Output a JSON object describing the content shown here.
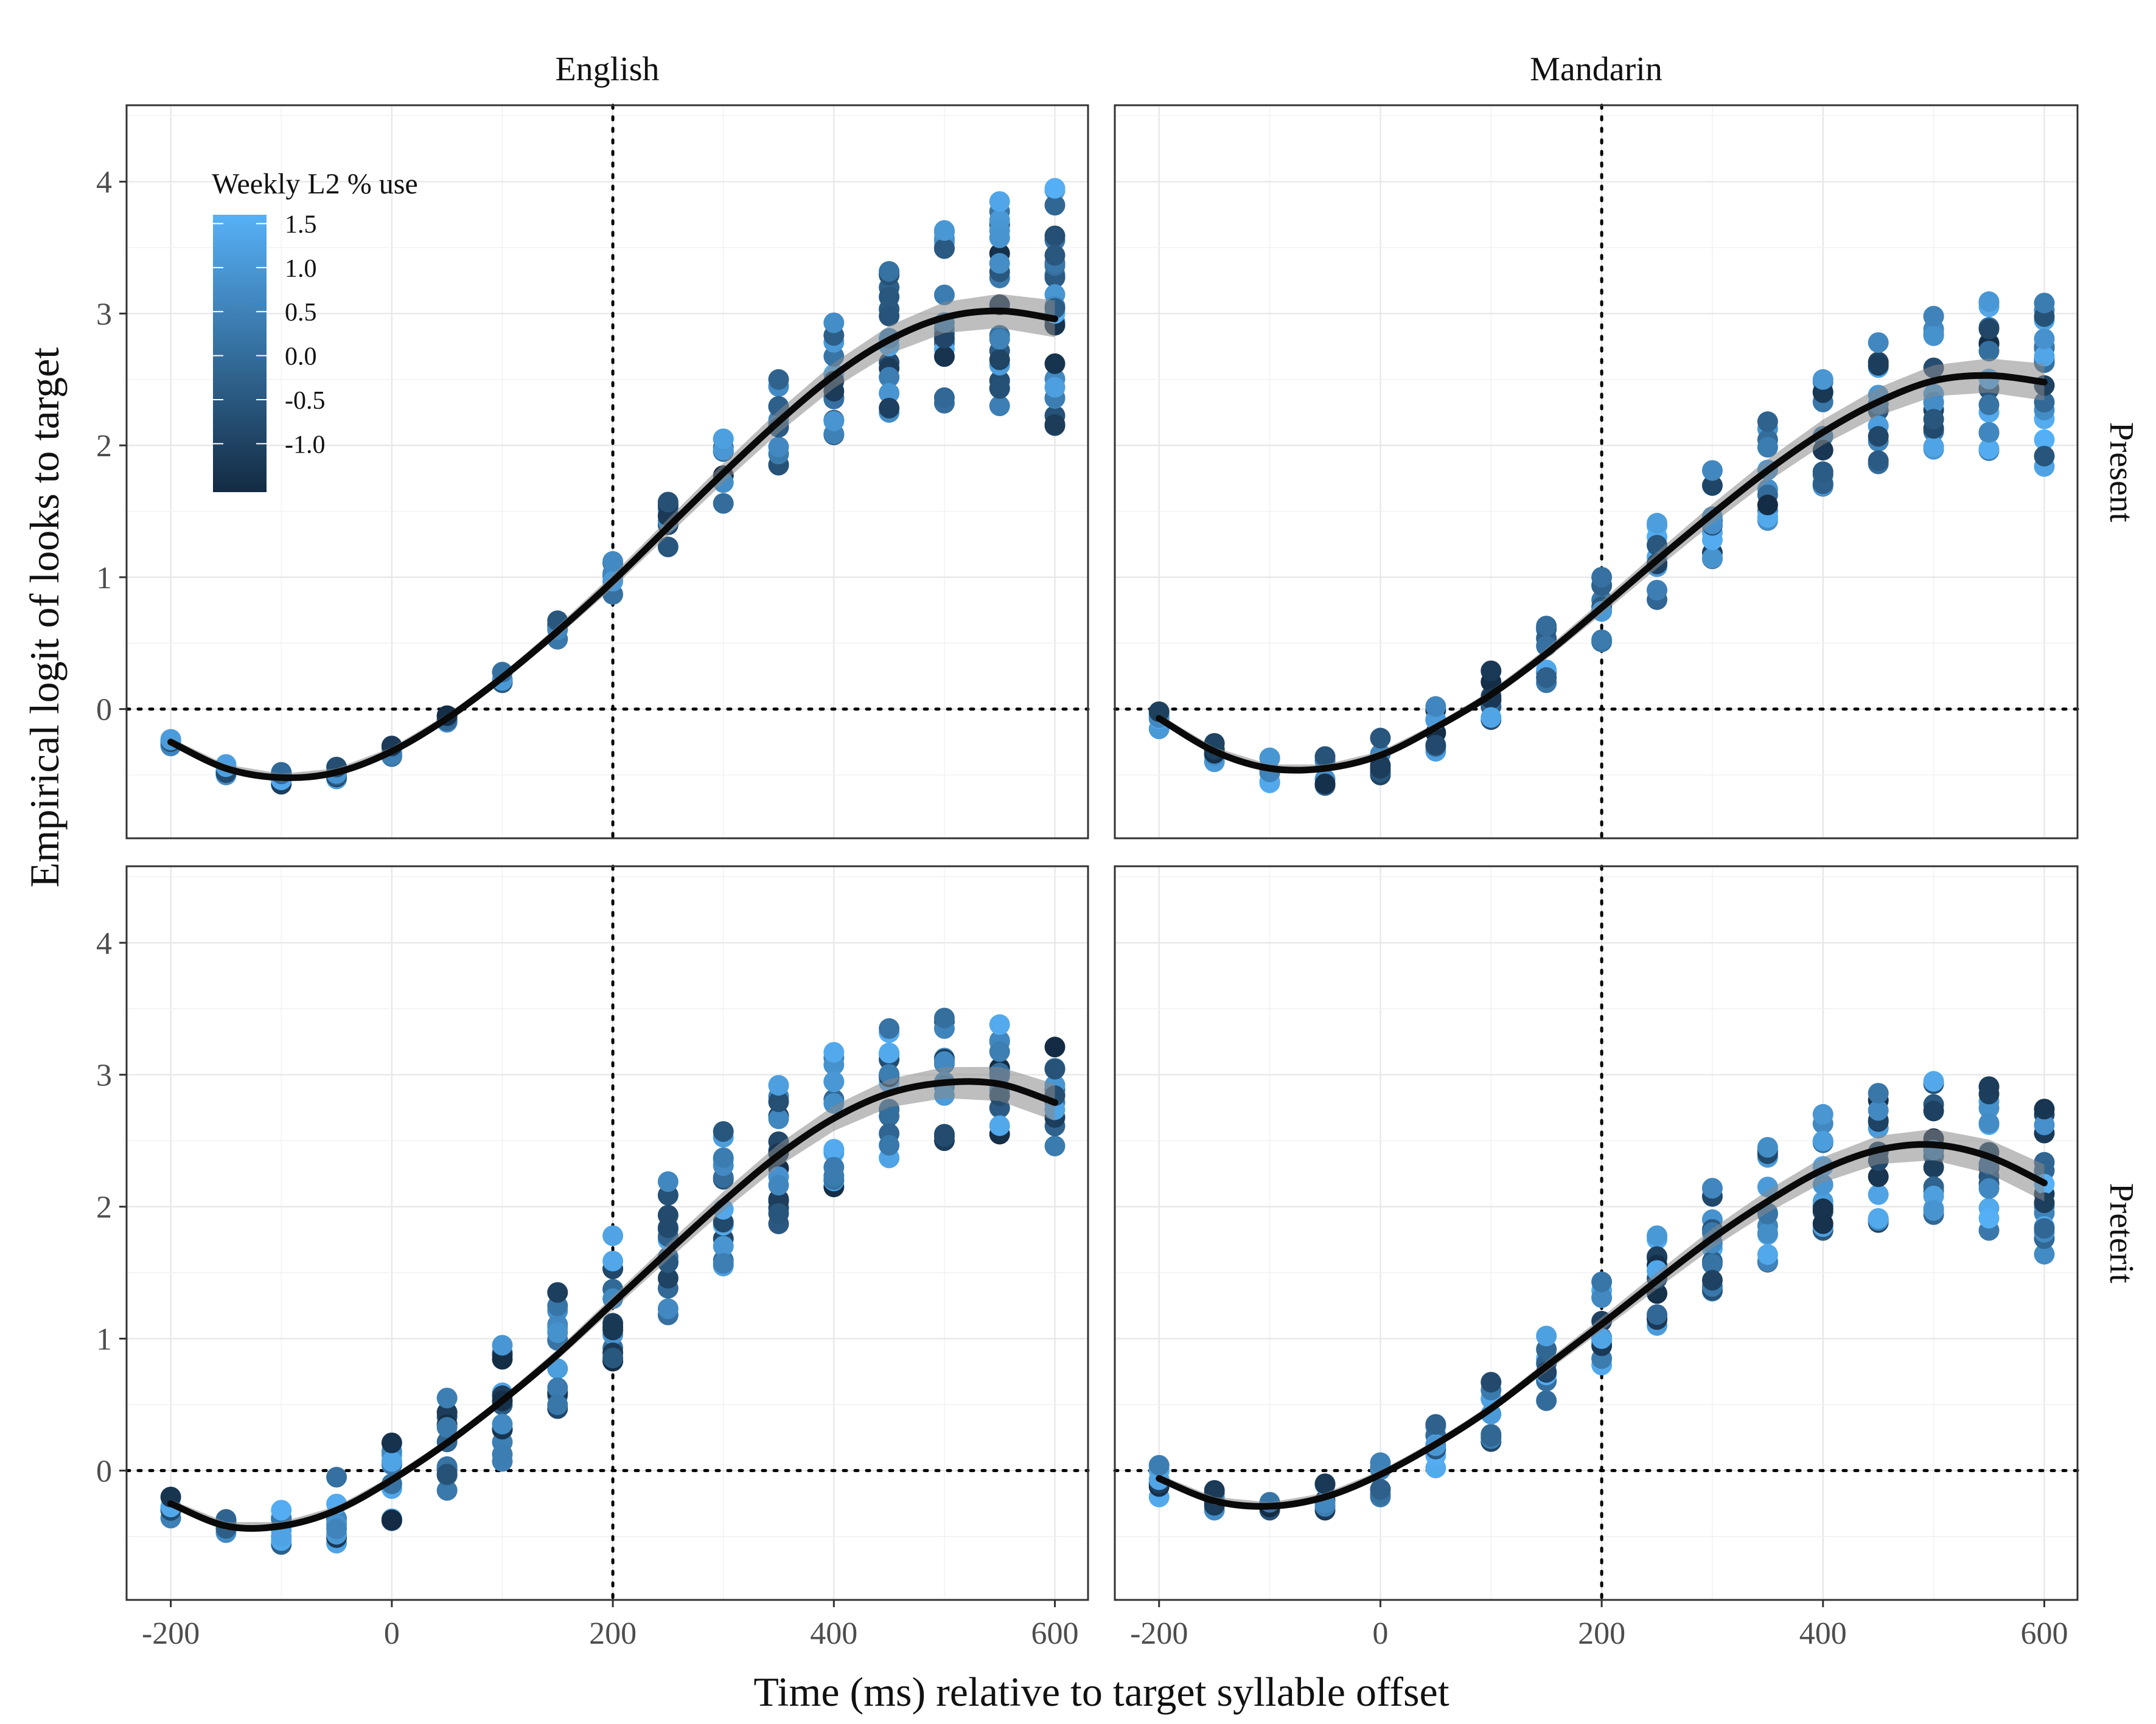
{
  "chart_data": {
    "type": "scatter",
    "x_label": "Time (ms) relative to target syllable offset",
    "y_label": "Empirical logit of looks to target",
    "column_facets": [
      "English",
      "Mandarin"
    ],
    "row_facets": [
      "Present",
      "Preterit"
    ],
    "x_ticks": [
      "-200",
      "0",
      "200",
      "400",
      "600"
    ],
    "y_ticks": [
      "0",
      "1",
      "2",
      "3",
      "4"
    ],
    "xlim": [
      -240,
      630
    ],
    "ylim": [
      -0.98,
      4.58
    ],
    "grid": true,
    "reference_lines": {
      "x": 200,
      "y": 0,
      "style": "dotted"
    },
    "legend": {
      "title": "Weekly L2 % use",
      "position": "top-left inside",
      "labels": [
        "1.5",
        "1.0",
        "0.5",
        "0.0",
        "-0.5",
        "-1.0"
      ],
      "values": [
        1.5,
        1.0,
        0.5,
        0.0,
        -0.5,
        -1.0
      ],
      "range": [
        -1.55,
        1.6
      ],
      "color_low": "#132B43",
      "color_high": "#56B1F7"
    },
    "x_times": [
      -200,
      -150,
      -100,
      -50,
      0,
      50,
      100,
      150,
      200,
      250,
      300,
      350,
      400,
      450,
      500,
      550,
      600
    ],
    "panels": [
      {
        "row": "Present",
        "col": "English",
        "fit": [
          -0.25,
          -0.45,
          -0.52,
          -0.48,
          -0.32,
          -0.07,
          0.24,
          0.59,
          0.97,
          1.38,
          1.79,
          2.18,
          2.53,
          2.8,
          2.97,
          3.02,
          2.96
        ],
        "spread_low": [
          -0.28,
          -0.5,
          -0.57,
          -0.53,
          -0.36,
          -0.1,
          0.2,
          0.53,
          0.87,
          1.23,
          1.56,
          1.85,
          2.08,
          2.25,
          2.32,
          2.3,
          2.15
        ],
        "spread_high": [
          -0.23,
          -0.42,
          -0.48,
          -0.44,
          -0.28,
          -0.05,
          0.28,
          0.67,
          1.12,
          1.57,
          2.05,
          2.5,
          2.93,
          3.32,
          3.63,
          3.85,
          3.95
        ]
      },
      {
        "row": "Present",
        "col": "Mandarin",
        "fit": [
          -0.07,
          -0.32,
          -0.45,
          -0.45,
          -0.35,
          -0.14,
          0.11,
          0.42,
          0.77,
          1.13,
          1.48,
          1.81,
          2.1,
          2.33,
          2.49,
          2.53,
          2.48
        ],
        "spread_low": [
          -0.15,
          -0.4,
          -0.56,
          -0.58,
          -0.5,
          -0.32,
          -0.08,
          0.2,
          0.51,
          0.83,
          1.14,
          1.43,
          1.69,
          1.86,
          1.97,
          1.96,
          1.84
        ],
        "spread_high": [
          -0.02,
          -0.26,
          -0.37,
          -0.36,
          -0.22,
          0.02,
          0.29,
          0.63,
          1.0,
          1.41,
          1.81,
          2.18,
          2.5,
          2.78,
          2.98,
          3.09,
          3.08
        ]
      },
      {
        "row": "Preterit",
        "col": "English",
        "fit": [
          -0.25,
          -0.42,
          -0.42,
          -0.3,
          -0.07,
          0.21,
          0.53,
          0.88,
          1.27,
          1.66,
          2.04,
          2.39,
          2.67,
          2.86,
          2.94,
          2.93,
          2.79
        ],
        "spread_low": [
          -0.36,
          -0.47,
          -0.56,
          -0.55,
          -0.38,
          -0.15,
          0.07,
          0.47,
          0.83,
          1.18,
          1.55,
          1.87,
          2.15,
          2.37,
          2.5,
          2.55,
          2.46
        ],
        "spread_high": [
          -0.2,
          -0.37,
          -0.3,
          -0.05,
          0.21,
          0.55,
          0.95,
          1.35,
          1.78,
          2.19,
          2.57,
          2.92,
          3.17,
          3.35,
          3.43,
          3.38,
          3.21
        ]
      },
      {
        "row": "Preterit",
        "col": "Mandarin",
        "fit": [
          -0.06,
          -0.23,
          -0.27,
          -0.2,
          -0.03,
          0.2,
          0.47,
          0.79,
          1.11,
          1.44,
          1.76,
          2.04,
          2.28,
          2.43,
          2.47,
          2.38,
          2.18
        ],
        "spread_low": [
          -0.2,
          -0.3,
          -0.3,
          -0.3,
          -0.2,
          0.02,
          0.22,
          0.53,
          0.8,
          1.1,
          1.36,
          1.58,
          1.82,
          1.88,
          1.94,
          1.82,
          1.64
        ],
        "spread_high": [
          0.04,
          -0.15,
          -0.24,
          -0.1,
          0.06,
          0.35,
          0.67,
          1.02,
          1.43,
          1.78,
          2.14,
          2.45,
          2.7,
          2.86,
          2.95,
          2.91,
          2.74
        ]
      }
    ]
  }
}
